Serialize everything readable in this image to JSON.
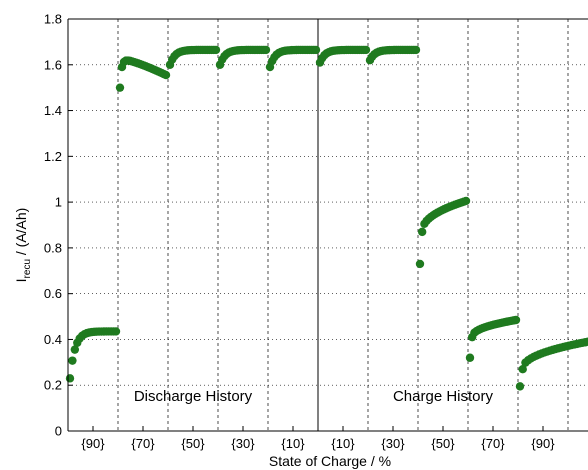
{
  "chart_data": {
    "type": "scatter",
    "xlabel": "State of Charge / %",
    "ylabel": {
      "main": "I",
      "sub": "recu",
      "rest": " / (A/Ah)"
    },
    "ylim": [
      0,
      1.8
    ],
    "xlim": [
      0,
      10.4
    ],
    "yticks": [
      0,
      0.2,
      0.4,
      0.6,
      0.8,
      1,
      1.2,
      1.4,
      1.6,
      1.8
    ],
    "ytick_labels": [
      "0",
      "0.2",
      "0.4",
      "0.6",
      "0.8",
      "1",
      "1.2",
      "1.4",
      "1.6",
      "1.8"
    ],
    "xtick_labels": [
      "{90}",
      "{70}",
      "{50}",
      "{30}",
      "{10}",
      "{10}",
      "{30}",
      "{50}",
      "{70}",
      "{90}"
    ],
    "xtick_positions": [
      0.5,
      1.5,
      2.5,
      3.5,
      4.5,
      5.5,
      6.5,
      7.5,
      8.5,
      9.5
    ],
    "grid_lines_x": [
      1,
      2,
      3,
      4,
      6,
      7,
      8,
      9,
      10
    ],
    "divider_x": 5,
    "grid": true,
    "marker_color": "#1f7a1f",
    "annotations": [
      {
        "text": "Discharge History",
        "x": 2.5,
        "y": 0.13
      },
      {
        "text": "Charge History",
        "x": 7.5,
        "y": 0.13
      }
    ],
    "segments": [
      {
        "x_start": 0.04,
        "x_end": 0.96,
        "y_start": 0.23,
        "y_plateau": 0.435,
        "shape": "rise",
        "n": 20
      },
      {
        "x_start": 1.04,
        "x_end": 1.96,
        "y_start": 1.5,
        "y_peak": 1.625,
        "y_end": 1.555,
        "shape": "peak_decay",
        "n": 24
      },
      {
        "x_start": 2.04,
        "x_end": 2.96,
        "y_start": 1.6,
        "y_plateau": 1.665,
        "shape": "rise",
        "n": 22
      },
      {
        "x_start": 3.04,
        "x_end": 3.96,
        "y_start": 1.6,
        "y_plateau": 1.665,
        "shape": "rise",
        "n": 22
      },
      {
        "x_start": 4.04,
        "x_end": 4.96,
        "y_start": 1.59,
        "y_plateau": 1.665,
        "shape": "rise",
        "n": 22
      },
      {
        "x_start": 5.04,
        "x_end": 5.96,
        "y_start": 1.61,
        "y_plateau": 1.665,
        "shape": "rise",
        "n": 22
      },
      {
        "x_start": 6.04,
        "x_end": 6.96,
        "y_start": 1.62,
        "y_plateau": 1.665,
        "shape": "rise",
        "n": 22
      },
      {
        "x_start": 7.04,
        "x_end": 7.96,
        "y_start": 0.73,
        "y_next": 0.87,
        "y_end": 1.005,
        "shape": "jump_rise",
        "n": 22
      },
      {
        "x_start": 8.04,
        "x_end": 8.96,
        "y_start": 0.32,
        "y_next": 0.41,
        "y_end": 0.485,
        "shape": "jump_rise",
        "n": 22
      },
      {
        "x_start": 9.04,
        "x_end": 10.4,
        "y_start": 0.195,
        "y_next": 0.27,
        "y_end": 0.39,
        "shape": "jump_rise",
        "n": 26
      }
    ]
  }
}
